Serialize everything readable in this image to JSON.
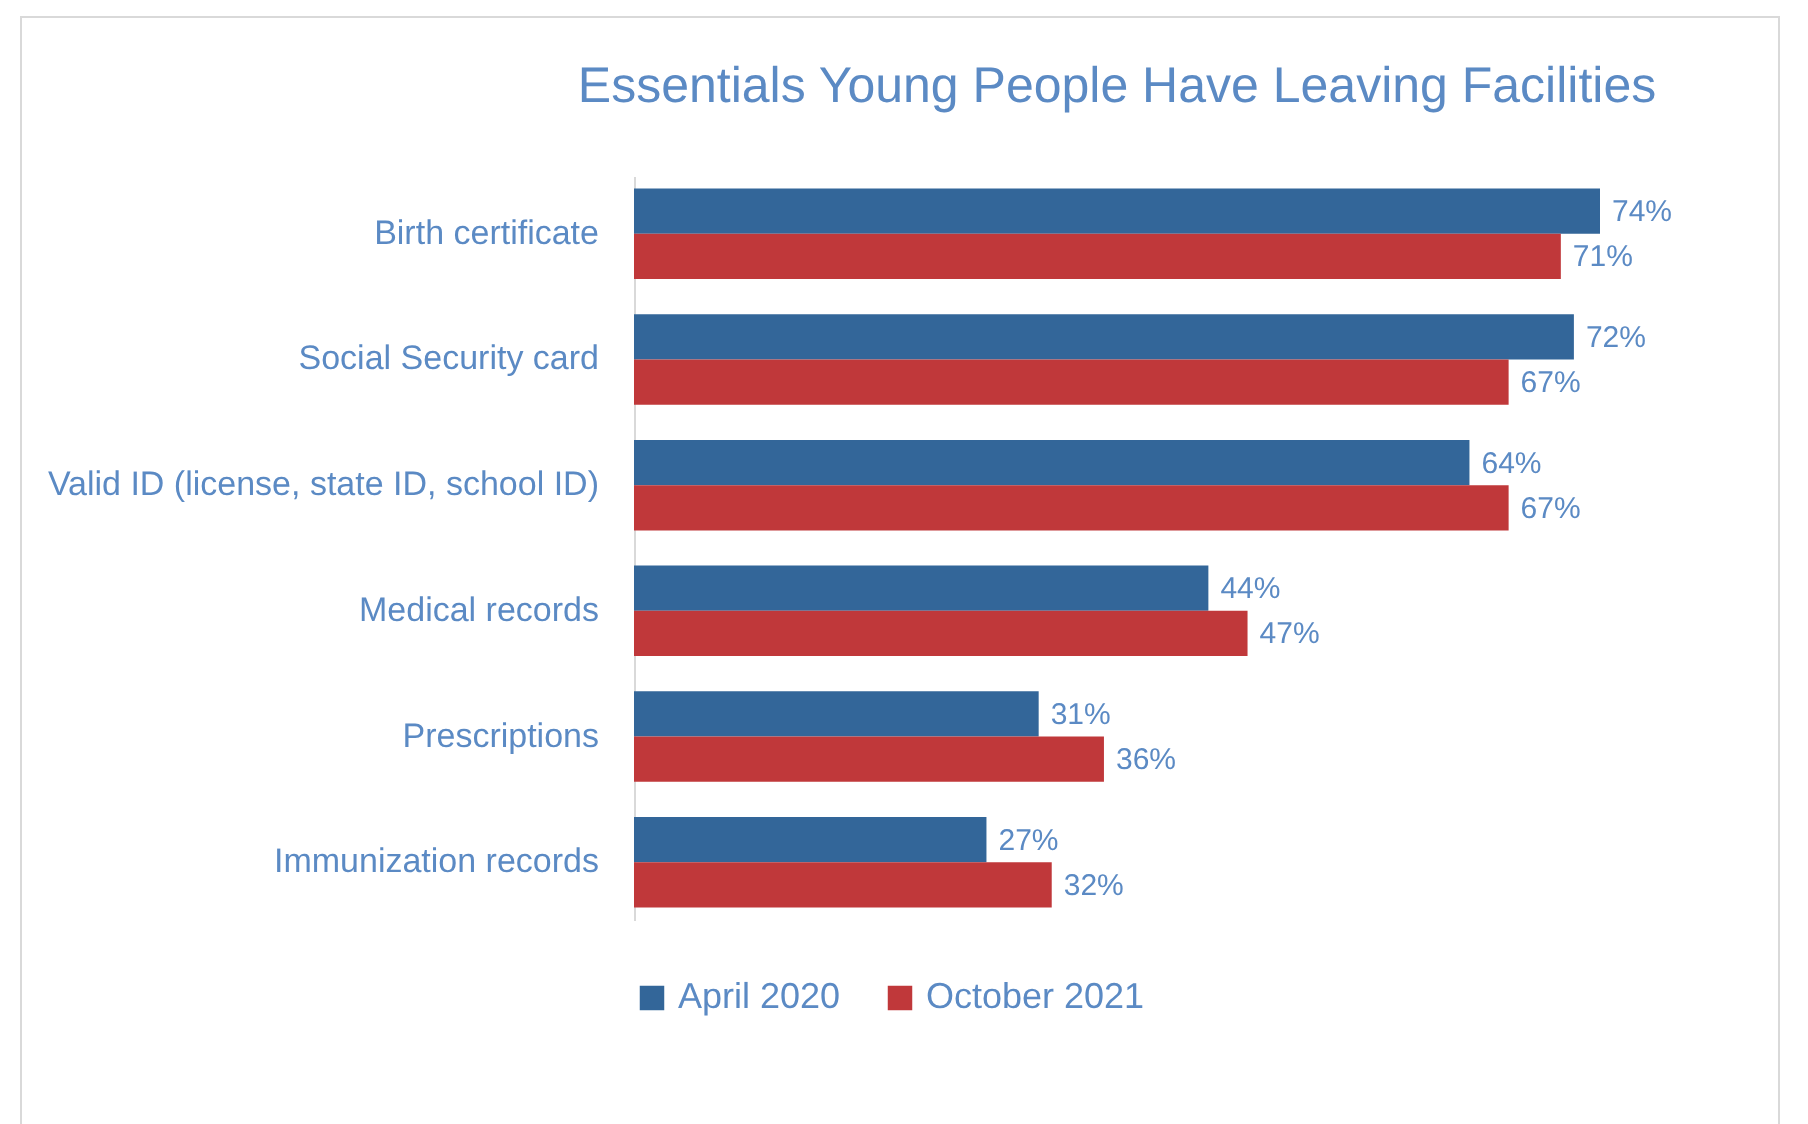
{
  "chart_data": {
    "type": "bar",
    "orientation": "horizontal",
    "title": "Essentials Young People Have Leaving Facilities",
    "categories": [
      "Birth certificate",
      "Social Security card",
      "Valid ID (license, state ID, school ID)",
      "Medical records",
      "Prescriptions",
      "Immunization records"
    ],
    "series": [
      {
        "name": "April 2020",
        "color": "#336699",
        "values": [
          74,
          72,
          64,
          44,
          31,
          27
        ],
        "value_labels": [
          "74%",
          "72%",
          "64%",
          "44%",
          "31%",
          "27%"
        ]
      },
      {
        "name": "October 2021",
        "color": "#c0383a",
        "values": [
          71,
          67,
          67,
          47,
          36,
          32
        ],
        "value_labels": [
          "71%",
          "67%",
          "67%",
          "47%",
          "36%",
          "32%"
        ]
      }
    ],
    "tick_labels": "y",
    "legend": "bottom"
  }
}
